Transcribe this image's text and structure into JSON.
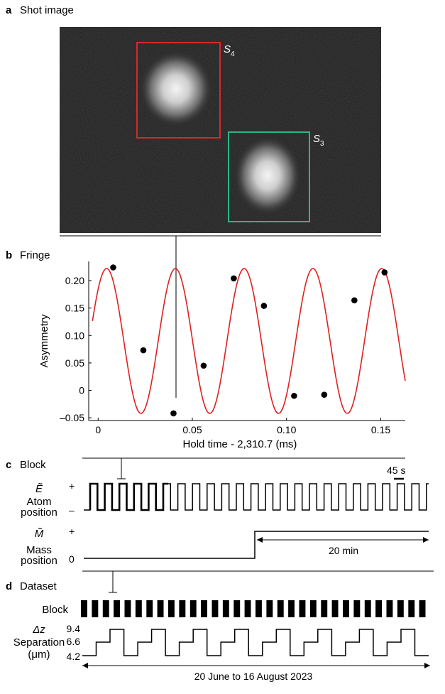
{
  "panels": {
    "a": {
      "letter": "a",
      "title": "Shot image",
      "roi_labels": [
        "S",
        "4",
        "S",
        "3"
      ],
      "roi_colors": {
        "S4": "#d12b2b",
        "S3": "#2bb58a"
      }
    },
    "b": {
      "letter": "b",
      "title": "Fringe"
    },
    "c": {
      "letter": "c",
      "title": "Block",
      "scale_label": "45 s",
      "E_symbol": "Ẽ",
      "E_plus": "+",
      "E_minus": "–",
      "E_label_1": "Atom",
      "E_label_2": "position",
      "M_symbol": "M̃",
      "M_plus": "+",
      "M_zero": "0",
      "M_label_1": "Mass",
      "M_label_2": "position",
      "M_duration": "20 min"
    },
    "d": {
      "letter": "d",
      "title": "Dataset",
      "block_label": "Block",
      "sep_symbol": "Δz",
      "sep_label_1": "Separation",
      "sep_label_2": "(μm)",
      "sep_ticks": [
        "9.4",
        "6.6",
        "4.2"
      ],
      "date_range": "20 June to 16 August 2023"
    }
  },
  "chart_data": {
    "type": "scatter",
    "title": "",
    "xlabel": "Hold time - 2,310.7 (ms)",
    "ylabel": "Asymmetry",
    "xlim": [
      -0.005,
      0.163
    ],
    "ylim": [
      -0.055,
      0.235
    ],
    "xticks": [
      0,
      0.05,
      0.1,
      0.15
    ],
    "xtick_labels": [
      "0",
      "0.05",
      "0.10",
      "0.15"
    ],
    "yticks": [
      -0.05,
      0,
      0.05,
      0.1,
      0.15,
      0.2
    ],
    "ytick_labels": [
      "–0.05",
      "0",
      "0.05",
      "0.10",
      "0.15",
      "0.20"
    ],
    "grid": false,
    "series": [
      {
        "values": [
          {
            "x": 0.008,
            "y": 0.224
          },
          {
            "x": 0.024,
            "y": 0.073
          },
          {
            "x": 0.04,
            "y": -0.042
          },
          {
            "x": 0.056,
            "y": 0.045
          },
          {
            "x": 0.072,
            "y": 0.204
          },
          {
            "x": 0.088,
            "y": 0.154
          },
          {
            "x": 0.104,
            "y": -0.01
          },
          {
            "x": 0.12,
            "y": -0.008
          },
          {
            "x": 0.136,
            "y": 0.164
          },
          {
            "x": 0.152,
            "y": 0.215
          }
        ]
      },
      {
        "fit": {
          "offset": 0.09,
          "amplitude": 0.132,
          "period": 0.0365,
          "peak_at": 0.0045
        },
        "x_range": [
          -0.003,
          0.163
        ],
        "color": "#e02020"
      }
    ]
  }
}
